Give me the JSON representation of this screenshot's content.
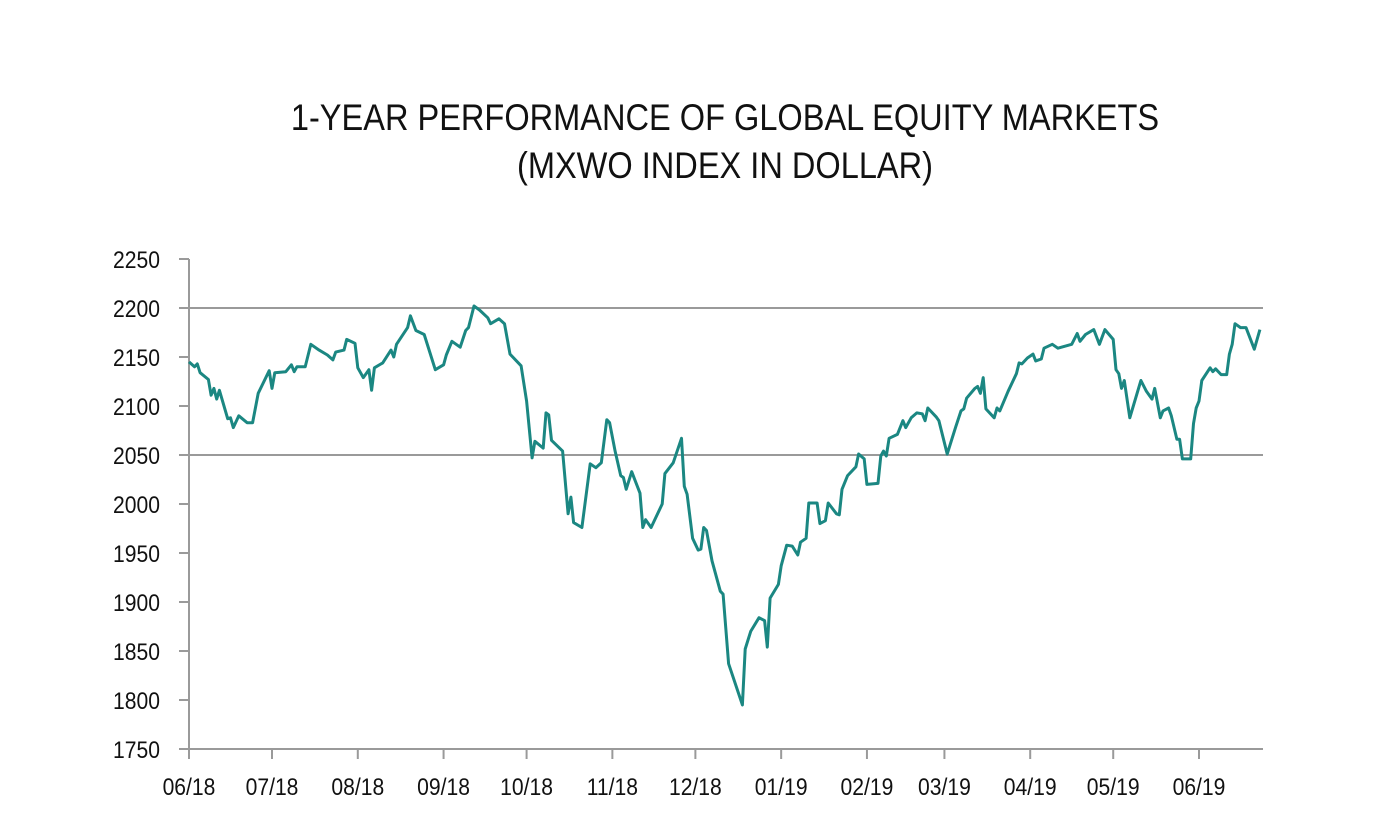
{
  "chart_data": {
    "type": "line",
    "title": [
      "1-YEAR PERFORMANCE OF GLOBAL EQUITY MARKETS",
      "(MXWO INDEX IN DOLLAR)"
    ],
    "xlabel": "",
    "ylabel": "",
    "ylim": [
      1750,
      2250
    ],
    "yticks": [
      "1750",
      "1800",
      "1850",
      "1900",
      "1950",
      "2000",
      "2050",
      "2100",
      "2150",
      "2200",
      "2250"
    ],
    "xticks": [
      {
        "label": "06/18",
        "date": "2018-06-01"
      },
      {
        "label": "07/18",
        "date": "2018-07-01"
      },
      {
        "label": "08/18",
        "date": "2018-08-01"
      },
      {
        "label": "09/18",
        "date": "2018-09-01"
      },
      {
        "label": "10/18",
        "date": "2018-10-01"
      },
      {
        "label": "11/18",
        "date": "2018-11-01"
      },
      {
        "label": "12/18",
        "date": "2018-12-01"
      },
      {
        "label": "01/19",
        "date": "2019-01-01"
      },
      {
        "label": "02/19",
        "date": "2019-02-01"
      },
      {
        "label": "03/19",
        "date": "2019-03-01"
      },
      {
        "label": "04/19",
        "date": "2019-04-01"
      },
      {
        "label": "05/19",
        "date": "2019-05-01"
      },
      {
        "label": "06/19",
        "date": "2019-06-01"
      }
    ],
    "xlim": [
      "2018-06-01",
      "2019-06-24"
    ],
    "gridlines": [
      2050,
      2200
    ],
    "grid": "horizontal at 2050 and 2200",
    "line_color": "#1b8782",
    "grid_color": "#9a9a9a",
    "series": [
      {
        "points": [
          [
            "2018-06-01",
            2145
          ],
          [
            "2018-06-03",
            2140
          ],
          [
            "2018-06-04",
            2143
          ],
          [
            "2018-06-05",
            2134
          ],
          [
            "2018-06-08",
            2127
          ],
          [
            "2018-06-09",
            2111
          ],
          [
            "2018-06-10",
            2118
          ],
          [
            "2018-06-11",
            2107
          ],
          [
            "2018-06-12",
            2116
          ],
          [
            "2018-06-15",
            2087
          ],
          [
            "2018-06-16",
            2088
          ],
          [
            "2018-06-17",
            2078
          ],
          [
            "2018-06-19",
            2090
          ],
          [
            "2018-06-22",
            2083
          ],
          [
            "2018-06-24",
            2083
          ],
          [
            "2018-06-26",
            2113
          ],
          [
            "2018-06-30",
            2136
          ],
          [
            "2018-07-01",
            2118
          ],
          [
            "2018-07-02",
            2134
          ],
          [
            "2018-07-06",
            2135
          ],
          [
            "2018-07-08",
            2142
          ],
          [
            "2018-07-09",
            2135
          ],
          [
            "2018-07-10",
            2140
          ],
          [
            "2018-07-13",
            2140
          ],
          [
            "2018-07-15",
            2163
          ],
          [
            "2018-07-18",
            2157
          ],
          [
            "2018-07-21",
            2152
          ],
          [
            "2018-07-23",
            2147
          ],
          [
            "2018-07-24",
            2155
          ],
          [
            "2018-07-27",
            2157
          ],
          [
            "2018-07-28",
            2168
          ],
          [
            "2018-07-31",
            2164
          ],
          [
            "2018-08-01",
            2139
          ],
          [
            "2018-08-03",
            2129
          ],
          [
            "2018-08-05",
            2137
          ],
          [
            "2018-08-06",
            2116
          ],
          [
            "2018-08-07",
            2139
          ],
          [
            "2018-08-10",
            2144
          ],
          [
            "2018-08-13",
            2157
          ],
          [
            "2018-08-14",
            2150
          ],
          [
            "2018-08-15",
            2163
          ],
          [
            "2018-08-19",
            2180
          ],
          [
            "2018-08-20",
            2192
          ],
          [
            "2018-08-22",
            2177
          ],
          [
            "2018-08-25",
            2173
          ],
          [
            "2018-08-29",
            2137
          ],
          [
            "2018-09-01",
            2142
          ],
          [
            "2018-09-02",
            2152
          ],
          [
            "2018-09-04",
            2166
          ],
          [
            "2018-09-07",
            2160
          ],
          [
            "2018-09-09",
            2177
          ],
          [
            "2018-09-10",
            2180
          ],
          [
            "2018-09-12",
            2202
          ],
          [
            "2018-09-14",
            2198
          ],
          [
            "2018-09-17",
            2190
          ],
          [
            "2018-09-18",
            2184
          ],
          [
            "2018-09-21",
            2189
          ],
          [
            "2018-09-23",
            2184
          ],
          [
            "2018-09-25",
            2153
          ],
          [
            "2018-09-29",
            2141
          ],
          [
            "2018-10-01",
            2105
          ],
          [
            "2018-10-03",
            2047
          ],
          [
            "2018-10-04",
            2064
          ],
          [
            "2018-10-07",
            2057
          ],
          [
            "2018-10-08",
            2093
          ],
          [
            "2018-10-09",
            2091
          ],
          [
            "2018-10-10",
            2065
          ],
          [
            "2018-10-14",
            2054
          ],
          [
            "2018-10-16",
            1990
          ],
          [
            "2018-10-17",
            2007
          ],
          [
            "2018-10-18",
            1981
          ],
          [
            "2018-10-21",
            1976
          ],
          [
            "2018-10-24",
            2041
          ],
          [
            "2018-10-26",
            2037
          ],
          [
            "2018-10-28",
            2042
          ],
          [
            "2018-10-30",
            2086
          ],
          [
            "2018-10-31",
            2083
          ],
          [
            "2018-11-02",
            2054
          ],
          [
            "2018-11-04",
            2029
          ],
          [
            "2018-11-05",
            2027
          ],
          [
            "2018-11-06",
            2015
          ],
          [
            "2018-11-08",
            2033
          ],
          [
            "2018-11-11",
            2011
          ],
          [
            "2018-11-12",
            1976
          ],
          [
            "2018-11-13",
            1984
          ],
          [
            "2018-11-15",
            1976
          ],
          [
            "2018-11-19",
            2000
          ],
          [
            "2018-11-20",
            2031
          ],
          [
            "2018-11-23",
            2042
          ],
          [
            "2018-11-26",
            2067
          ],
          [
            "2018-11-27",
            2018
          ],
          [
            "2018-11-28",
            2010
          ],
          [
            "2018-11-30",
            1965
          ],
          [
            "2018-12-02",
            1953
          ],
          [
            "2018-12-03",
            1954
          ],
          [
            "2018-12-04",
            1976
          ],
          [
            "2018-12-05",
            1973
          ],
          [
            "2018-12-07",
            1942
          ],
          [
            "2018-12-10",
            1911
          ],
          [
            "2018-12-11",
            1908
          ],
          [
            "2018-12-13",
            1837
          ],
          [
            "2018-12-18",
            1795
          ],
          [
            "2018-12-19",
            1852
          ],
          [
            "2018-12-21",
            1870
          ],
          [
            "2018-12-24",
            1884
          ],
          [
            "2018-12-26",
            1881
          ],
          [
            "2018-12-27",
            1854
          ],
          [
            "2018-12-28",
            1904
          ],
          [
            "2018-12-31",
            1918
          ],
          [
            "2019-01-01",
            1937
          ],
          [
            "2019-01-03",
            1958
          ],
          [
            "2019-01-05",
            1957
          ],
          [
            "2019-01-07",
            1948
          ],
          [
            "2019-01-08",
            1961
          ],
          [
            "2019-01-10",
            1965
          ],
          [
            "2019-01-11",
            2001
          ],
          [
            "2019-01-14",
            2001
          ],
          [
            "2019-01-15",
            1980
          ],
          [
            "2019-01-17",
            1983
          ],
          [
            "2019-01-18",
            2001
          ],
          [
            "2019-01-21",
            1990
          ],
          [
            "2019-01-22",
            1989
          ],
          [
            "2019-01-23",
            2015
          ],
          [
            "2019-01-25",
            2029
          ],
          [
            "2019-01-28",
            2038
          ],
          [
            "2019-01-29",
            2051
          ],
          [
            "2019-01-31",
            2046
          ],
          [
            "2019-02-01",
            2020
          ],
          [
            "2019-02-05",
            2021
          ],
          [
            "2019-02-06",
            2049
          ],
          [
            "2019-02-07",
            2054
          ],
          [
            "2019-02-08",
            2049
          ],
          [
            "2019-02-09",
            2067
          ],
          [
            "2019-02-12",
            2071
          ],
          [
            "2019-02-14",
            2085
          ],
          [
            "2019-02-15",
            2078
          ],
          [
            "2019-02-17",
            2088
          ],
          [
            "2019-02-19",
            2093
          ],
          [
            "2019-02-21",
            2092
          ],
          [
            "2019-02-22",
            2085
          ],
          [
            "2019-02-23",
            2098
          ],
          [
            "2019-02-26",
            2089
          ],
          [
            "2019-02-27",
            2085
          ],
          [
            "2019-03-02",
            2051
          ],
          [
            "2019-03-05",
            2078
          ],
          [
            "2019-03-07",
            2095
          ],
          [
            "2019-03-08",
            2097
          ],
          [
            "2019-03-09",
            2108
          ],
          [
            "2019-03-12",
            2118
          ],
          [
            "2019-03-13",
            2120
          ],
          [
            "2019-03-14",
            2113
          ],
          [
            "2019-03-15",
            2129
          ],
          [
            "2019-03-16",
            2097
          ],
          [
            "2019-03-19",
            2088
          ],
          [
            "2019-03-20",
            2098
          ],
          [
            "2019-03-21",
            2095
          ],
          [
            "2019-03-24",
            2115
          ],
          [
            "2019-03-27",
            2133
          ],
          [
            "2019-03-28",
            2144
          ],
          [
            "2019-03-29",
            2143
          ],
          [
            "2019-03-31",
            2149
          ],
          [
            "2019-04-02",
            2153
          ],
          [
            "2019-04-03",
            2146
          ],
          [
            "2019-04-05",
            2148
          ],
          [
            "2019-04-06",
            2159
          ],
          [
            "2019-04-09",
            2163
          ],
          [
            "2019-04-11",
            2159
          ],
          [
            "2019-04-16",
            2163
          ],
          [
            "2019-04-18",
            2174
          ],
          [
            "2019-04-19",
            2166
          ],
          [
            "2019-04-21",
            2173
          ],
          [
            "2019-04-24",
            2178
          ],
          [
            "2019-04-26",
            2163
          ],
          [
            "2019-04-28",
            2178
          ],
          [
            "2019-05-01",
            2168
          ],
          [
            "2019-05-02",
            2137
          ],
          [
            "2019-05-03",
            2133
          ],
          [
            "2019-05-04",
            2118
          ],
          [
            "2019-05-05",
            2126
          ],
          [
            "2019-05-07",
            2088
          ],
          [
            "2019-05-11",
            2126
          ],
          [
            "2019-05-13",
            2115
          ],
          [
            "2019-05-15",
            2107
          ],
          [
            "2019-05-16",
            2118
          ],
          [
            "2019-05-18",
            2088
          ],
          [
            "2019-05-19",
            2095
          ],
          [
            "2019-05-21",
            2098
          ],
          [
            "2019-05-22",
            2090
          ],
          [
            "2019-05-24",
            2066
          ],
          [
            "2019-05-25",
            2066
          ],
          [
            "2019-05-26",
            2046
          ],
          [
            "2019-05-29",
            2046
          ],
          [
            "2019-05-30",
            2082
          ],
          [
            "2019-05-31",
            2098
          ],
          [
            "2019-06-01",
            2105
          ],
          [
            "2019-06-02",
            2126
          ],
          [
            "2019-06-05",
            2139
          ],
          [
            "2019-06-06",
            2135
          ],
          [
            "2019-06-07",
            2138
          ],
          [
            "2019-06-09",
            2132
          ],
          [
            "2019-06-11",
            2132
          ],
          [
            "2019-06-12",
            2153
          ],
          [
            "2019-06-13",
            2163
          ],
          [
            "2019-06-14",
            2184
          ],
          [
            "2019-06-16",
            2180
          ],
          [
            "2019-06-18",
            2180
          ],
          [
            "2019-06-21",
            2158
          ],
          [
            "2019-06-23",
            2178
          ]
        ]
      }
    ]
  }
}
